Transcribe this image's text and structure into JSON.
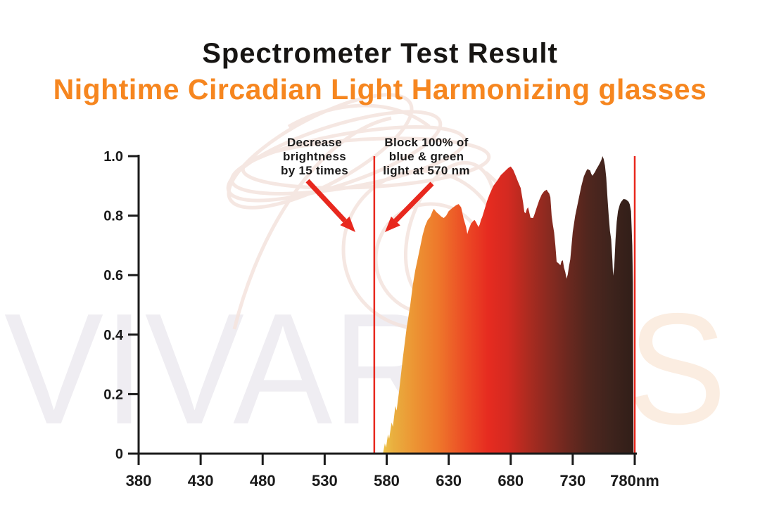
{
  "header": {
    "title": "Spectrometer Test Result",
    "subtitle": "Nightime Circadian Light Harmonizing glasses",
    "title_color": "#171513",
    "subtitle_color": "#F6861F"
  },
  "watermark": {
    "gray_part": "VIVARA",
    "peach_part": "YS",
    "gray_color": "#EFEDF2",
    "peach_color": "#FBEDE1"
  },
  "annotations": [
    {
      "id": "decrease-brightness",
      "lines": [
        "Decrease",
        "brightness",
        "by 15 times"
      ]
    },
    {
      "id": "block-blue-green",
      "lines": [
        "Block 100% of",
        "blue & green",
        "light at 570 nm"
      ]
    }
  ],
  "chart_data": {
    "type": "area",
    "x_axis_unit": "nm",
    "xlim": [
      380,
      780
    ],
    "ylim": [
      0,
      1.0
    ],
    "grid": false,
    "axis_color": "#1A1A1A",
    "accent_red": "#E8281E",
    "x_ticks": [
      {
        "value": 380,
        "label": "380"
      },
      {
        "value": 430,
        "label": "430"
      },
      {
        "value": 480,
        "label": "480"
      },
      {
        "value": 530,
        "label": "530"
      },
      {
        "value": 580,
        "label": "580"
      },
      {
        "value": 630,
        "label": "630"
      },
      {
        "value": 680,
        "label": "680"
      },
      {
        "value": 730,
        "label": "730"
      },
      {
        "value": 780,
        "label": "780nm"
      }
    ],
    "y_ticks": [
      {
        "value": 0,
        "label": "0"
      },
      {
        "value": 0.2,
        "label": "0.2"
      },
      {
        "value": 0.4,
        "label": "0.4"
      },
      {
        "value": 0.6,
        "label": "0.6"
      },
      {
        "value": 0.8,
        "label": "0.8"
      },
      {
        "value": 1.0,
        "label": "1.0"
      }
    ],
    "marker_lines": [
      {
        "at_nm": 570,
        "color": "#E8281E"
      },
      {
        "at_nm": 780,
        "color": "#E8281E"
      }
    ],
    "gradient_stops": [
      {
        "offset": 0.0,
        "color": "#EFC348"
      },
      {
        "offset": 0.04,
        "color": "#E9AF3F"
      },
      {
        "offset": 0.12,
        "color": "#EC9634"
      },
      {
        "offset": 0.22,
        "color": "#EE782B"
      },
      {
        "offset": 0.33,
        "color": "#EC4A25"
      },
      {
        "offset": 0.42,
        "color": "#E62B20"
      },
      {
        "offset": 0.5,
        "color": "#D32A21"
      },
      {
        "offset": 0.58,
        "color": "#AC2B20"
      },
      {
        "offset": 0.66,
        "color": "#8A2A20"
      },
      {
        "offset": 0.74,
        "color": "#6B281F"
      },
      {
        "offset": 0.82,
        "color": "#50261E"
      },
      {
        "offset": 0.9,
        "color": "#40241D"
      },
      {
        "offset": 1.0,
        "color": "#311E18"
      }
    ],
    "envelope": [
      [
        577,
        0
      ],
      [
        578.5,
        0.035
      ],
      [
        579.5,
        0.02
      ],
      [
        581,
        0.065
      ],
      [
        582,
        0.05
      ],
      [
        584,
        0.105
      ],
      [
        585,
        0.09
      ],
      [
        587,
        0.16
      ],
      [
        588,
        0.145
      ],
      [
        590,
        0.21
      ],
      [
        593,
        0.32
      ],
      [
        596,
        0.42
      ],
      [
        599,
        0.5
      ],
      [
        601,
        0.565
      ],
      [
        603,
        0.615
      ],
      [
        605,
        0.655
      ],
      [
        607,
        0.695
      ],
      [
        609,
        0.735
      ],
      [
        611,
        0.765
      ],
      [
        613,
        0.785
      ],
      [
        615,
        0.795
      ],
      [
        617,
        0.815
      ],
      [
        618,
        0.823
      ],
      [
        620,
        0.812
      ],
      [
        622,
        0.805
      ],
      [
        624,
        0.797
      ],
      [
        626,
        0.792
      ],
      [
        628,
        0.8
      ],
      [
        630,
        0.815
      ],
      [
        633,
        0.826
      ],
      [
        636,
        0.835
      ],
      [
        638,
        0.839
      ],
      [
        640,
        0.828
      ],
      [
        641,
        0.81
      ],
      [
        642,
        0.79
      ],
      [
        644,
        0.762
      ],
      [
        645,
        0.738
      ],
      [
        646,
        0.752
      ],
      [
        648,
        0.773
      ],
      [
        650,
        0.783
      ],
      [
        651,
        0.785
      ],
      [
        652,
        0.778
      ],
      [
        654,
        0.762
      ],
      [
        655,
        0.77
      ],
      [
        656,
        0.786
      ],
      [
        657,
        0.795
      ],
      [
        659,
        0.822
      ],
      [
        661,
        0.85
      ],
      [
        663,
        0.872
      ],
      [
        666,
        0.9
      ],
      [
        669,
        0.917
      ],
      [
        672,
        0.936
      ],
      [
        675,
        0.948
      ],
      [
        678,
        0.96
      ],
      [
        680,
        0.965
      ],
      [
        682,
        0.954
      ],
      [
        684,
        0.934
      ],
      [
        686,
        0.913
      ],
      [
        688,
        0.893
      ],
      [
        690,
        0.843
      ],
      [
        691,
        0.812
      ],
      [
        692,
        0.808
      ],
      [
        693,
        0.822
      ],
      [
        694,
        0.828
      ],
      [
        695,
        0.81
      ],
      [
        696,
        0.793
      ],
      [
        698,
        0.792
      ],
      [
        699,
        0.802
      ],
      [
        701,
        0.828
      ],
      [
        703,
        0.852
      ],
      [
        705,
        0.871
      ],
      [
        707,
        0.882
      ],
      [
        709,
        0.887
      ],
      [
        710,
        0.88
      ],
      [
        711,
        0.875
      ],
      [
        712,
        0.862
      ],
      [
        713,
        0.8
      ],
      [
        714,
        0.768
      ],
      [
        715,
        0.744
      ],
      [
        716,
        0.7
      ],
      [
        717,
        0.645
      ],
      [
        719,
        0.638
      ],
      [
        720,
        0.633
      ],
      [
        721,
        0.647
      ],
      [
        722,
        0.65
      ],
      [
        723,
        0.625
      ],
      [
        724,
        0.61
      ],
      [
        725,
        0.588
      ],
      [
        726,
        0.602
      ],
      [
        727,
        0.63
      ],
      [
        728,
        0.653
      ],
      [
        730,
        0.745
      ],
      [
        732,
        0.8
      ],
      [
        734,
        0.84
      ],
      [
        736,
        0.88
      ],
      [
        737,
        0.9
      ],
      [
        739,
        0.932
      ],
      [
        741,
        0.951
      ],
      [
        742,
        0.957
      ],
      [
        743,
        0.954
      ],
      [
        744,
        0.952
      ],
      [
        745,
        0.94
      ],
      [
        746,
        0.934
      ],
      [
        747,
        0.941
      ],
      [
        748,
        0.947
      ],
      [
        749,
        0.956
      ],
      [
        751,
        0.97
      ],
      [
        753,
        0.986
      ],
      [
        754,
        1.0
      ],
      [
        755,
        0.99
      ],
      [
        756,
        0.968
      ],
      [
        757,
        0.928
      ],
      [
        758,
        0.862
      ],
      [
        759,
        0.8
      ],
      [
        760,
        0.748
      ],
      [
        761,
        0.72
      ],
      [
        762,
        0.648
      ],
      [
        762.5,
        0.598
      ],
      [
        763.5,
        0.63
      ],
      [
        764.5,
        0.72
      ],
      [
        765.5,
        0.78
      ],
      [
        766.5,
        0.815
      ],
      [
        768,
        0.838
      ],
      [
        769,
        0.846
      ],
      [
        771,
        0.856
      ],
      [
        773,
        0.854
      ],
      [
        775,
        0.847
      ],
      [
        776,
        0.838
      ],
      [
        777,
        0.815
      ],
      [
        778,
        0.7
      ],
      [
        778.5,
        0.575
      ],
      [
        779,
        0
      ]
    ]
  }
}
